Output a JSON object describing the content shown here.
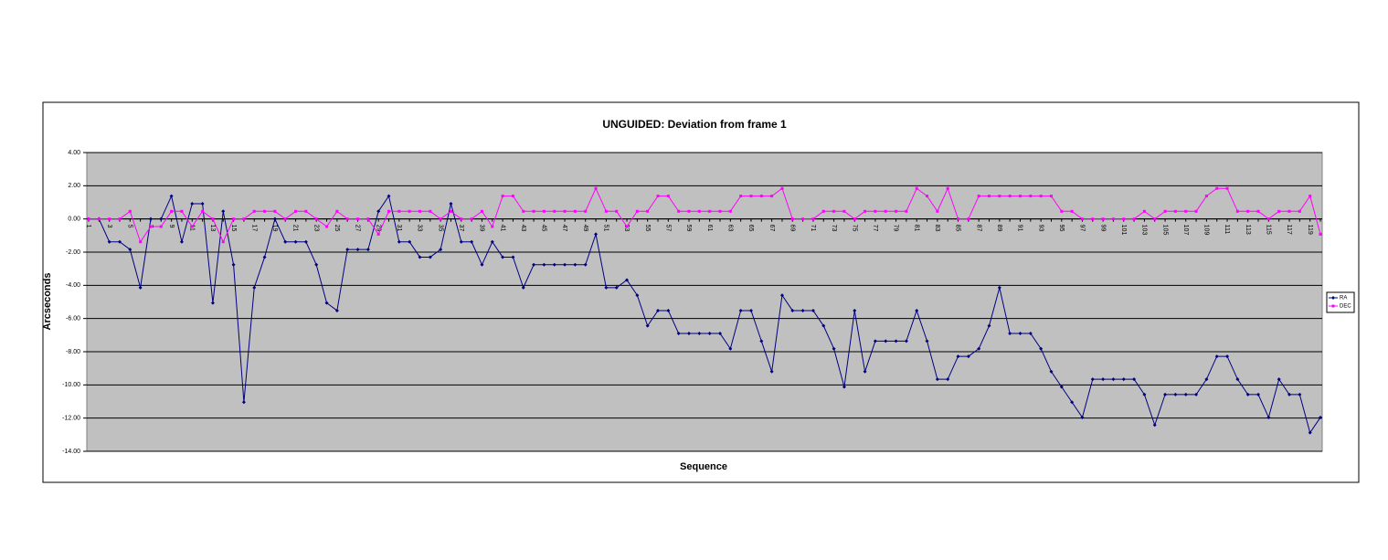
{
  "chart_data": {
    "type": "line",
    "title": "UNGUIDED: Deviation from frame 1",
    "x_label": "Sequence",
    "y_label": "Arcseconds",
    "categories": [
      1,
      null,
      3,
      null,
      5,
      null,
      7,
      null,
      9,
      null,
      11,
      null,
      13,
      null,
      15,
      null,
      17,
      null,
      19,
      null,
      21,
      null,
      23,
      null,
      25,
      null,
      27,
      null,
      29,
      null,
      31,
      null,
      33,
      null,
      35,
      null,
      37,
      null,
      39,
      null,
      41,
      null,
      43,
      null,
      45,
      null,
      47,
      null,
      49,
      null,
      51,
      null,
      53,
      null,
      55,
      null,
      57,
      null,
      59,
      null,
      61,
      null,
      63,
      null,
      65,
      null,
      67,
      null,
      69,
      null,
      71,
      null,
      73,
      null,
      75,
      null,
      77,
      null,
      79,
      null,
      81,
      null,
      83,
      null,
      85,
      null,
      87,
      null,
      89,
      null,
      91,
      null,
      93,
      null,
      95,
      null,
      97,
      null,
      99,
      null,
      101,
      null,
      103,
      null,
      105,
      null,
      107,
      null,
      109,
      null,
      111,
      null,
      113,
      null,
      115,
      null,
      117,
      null,
      119,
      null
    ],
    "series": [
      {
        "name": "RA",
        "color": "#000080",
        "marker": "diamond",
        "values": [
          0,
          0,
          -1.38,
          -1.38,
          -1.84,
          -4.14,
          0,
          0,
          1.38,
          -1.38,
          0.92,
          0.92,
          -5.06,
          0.46,
          -2.76,
          -11.04,
          -4.14,
          -2.3,
          0,
          -1.38,
          -1.38,
          -1.38,
          -2.76,
          -5.06,
          -5.52,
          -1.84,
          -1.84,
          -1.84,
          0.46,
          1.38,
          -1.38,
          -1.38,
          -2.3,
          -2.3,
          -1.84,
          0.92,
          -1.38,
          -1.38,
          -2.76,
          -1.38,
          -2.3,
          -2.3,
          -4.14,
          -2.76,
          -2.76,
          -2.76,
          -2.76,
          -2.76,
          -2.76,
          -0.92,
          -4.14,
          -4.14,
          -3.68,
          -4.6,
          -6.44,
          -5.52,
          -5.52,
          -6.9,
          -6.9,
          -6.9,
          -6.9,
          -6.9,
          -7.82,
          -5.52,
          -5.52,
          -7.36,
          -9.2,
          -4.6,
          -5.52,
          -5.52,
          -5.52,
          -6.44,
          -7.82,
          -10.12,
          -5.52,
          -9.2,
          -7.36,
          -7.36,
          -7.36,
          -7.36,
          -5.52,
          -7.36,
          -9.66,
          -9.66,
          -8.28,
          -8.28,
          -7.82,
          -6.44,
          -4.14,
          -6.9,
          -6.9,
          -6.9,
          -7.82,
          -9.2,
          -10.12,
          -11.04,
          -11.96,
          -9.66,
          -9.66,
          -9.66,
          -9.66,
          -9.66,
          -10.58,
          -12.42,
          -10.58,
          -10.58,
          -10.58,
          -10.58,
          -9.66,
          -8.28,
          -8.28,
          -9.66,
          -10.58,
          -10.58,
          -11.96,
          -9.66,
          -10.58,
          -10.58,
          -12.88,
          -11.96
        ]
      },
      {
        "name": "DEC",
        "color": "#ff00ff",
        "marker": "square",
        "values": [
          0,
          0,
          0,
          0,
          0.46,
          -1.38,
          -0.46,
          -0.46,
          0.46,
          0.46,
          -0.46,
          0.46,
          0,
          -1.38,
          0,
          0,
          0.46,
          0.46,
          0.46,
          0,
          0.46,
          0.46,
          0,
          -0.46,
          0.46,
          0,
          0,
          0,
          -0.92,
          0.46,
          0.46,
          0.46,
          0.46,
          0.46,
          0,
          0.46,
          0,
          0,
          0.46,
          -0.46,
          1.38,
          1.38,
          0.46,
          0.46,
          0.46,
          0.46,
          0.46,
          0.46,
          0.46,
          1.84,
          0.46,
          0.46,
          -0.46,
          0.46,
          0.46,
          1.38,
          1.38,
          0.46,
          0.46,
          0.46,
          0.46,
          0.46,
          0.46,
          1.38,
          1.38,
          1.38,
          1.38,
          1.84,
          0,
          0,
          0,
          0.46,
          0.46,
          0.46,
          0,
          0.46,
          0.46,
          0.46,
          0.46,
          0.46,
          1.84,
          1.38,
          0.46,
          1.84,
          0,
          0,
          1.38,
          1.38,
          1.38,
          1.38,
          1.38,
          1.38,
          1.38,
          1.38,
          0.46,
          0.46,
          0,
          0,
          0,
          0,
          0,
          0,
          0.46,
          0,
          0.46,
          0.46,
          0.46,
          0.46,
          1.38,
          1.84,
          1.84,
          0.46,
          0.46,
          0.46,
          0,
          0.46,
          0.46,
          0.46,
          1.38,
          -0.92
        ]
      }
    ],
    "ylim": [
      -14,
      4
    ],
    "yticks": [
      {
        "value": 4,
        "label": "4.00"
      },
      {
        "value": 2,
        "label": "2.00"
      },
      {
        "value": 0,
        "label": "0.00"
      },
      {
        "value": -2,
        "label": "-2.00"
      },
      {
        "value": -4,
        "label": "-4.00"
      },
      {
        "value": -6,
        "label": "-6.00"
      },
      {
        "value": -8,
        "label": "-8.00"
      },
      {
        "value": -10,
        "label": "-10.00"
      },
      {
        "value": -12,
        "label": "-12.00"
      },
      {
        "value": -14,
        "label": "-14.00"
      }
    ],
    "grid": true,
    "legend": "right",
    "plot_background": "#c0c0c0"
  }
}
